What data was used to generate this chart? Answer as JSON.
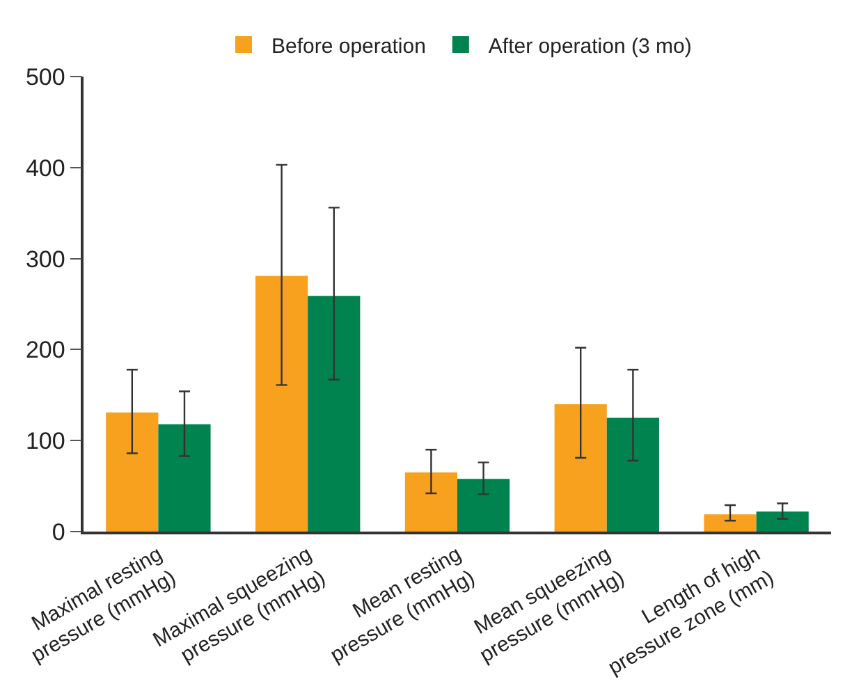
{
  "chart_data": {
    "type": "bar",
    "categories": [
      "Maximal resting\npressure (mmHg)",
      "Maximal squeezing\npressure (mmHg)",
      "Mean resting\npressure (mmHg)",
      "Mean squeezing\npressure (mmHg)",
      "Length of high\npressure zone (mm)"
    ],
    "series": [
      {
        "name": "Before operation",
        "color": "#f7a11e",
        "values": [
          131,
          281,
          65,
          140,
          19
        ],
        "errors": [
          [
            86,
            178
          ],
          [
            161,
            403
          ],
          [
            42,
            90
          ],
          [
            81,
            202
          ],
          [
            12,
            29
          ]
        ]
      },
      {
        "name": "After operation (3 mo)",
        "color": "#00834f",
        "values": [
          118,
          259,
          58,
          125,
          22
        ],
        "errors": [
          [
            83,
            154
          ],
          [
            167,
            356
          ],
          [
            41,
            76
          ],
          [
            78,
            178
          ],
          [
            14,
            31
          ]
        ]
      }
    ],
    "ylim": [
      0,
      500
    ],
    "yticks": [
      0,
      100,
      200,
      300,
      400,
      500
    ],
    "grid": false,
    "legend": "top"
  }
}
